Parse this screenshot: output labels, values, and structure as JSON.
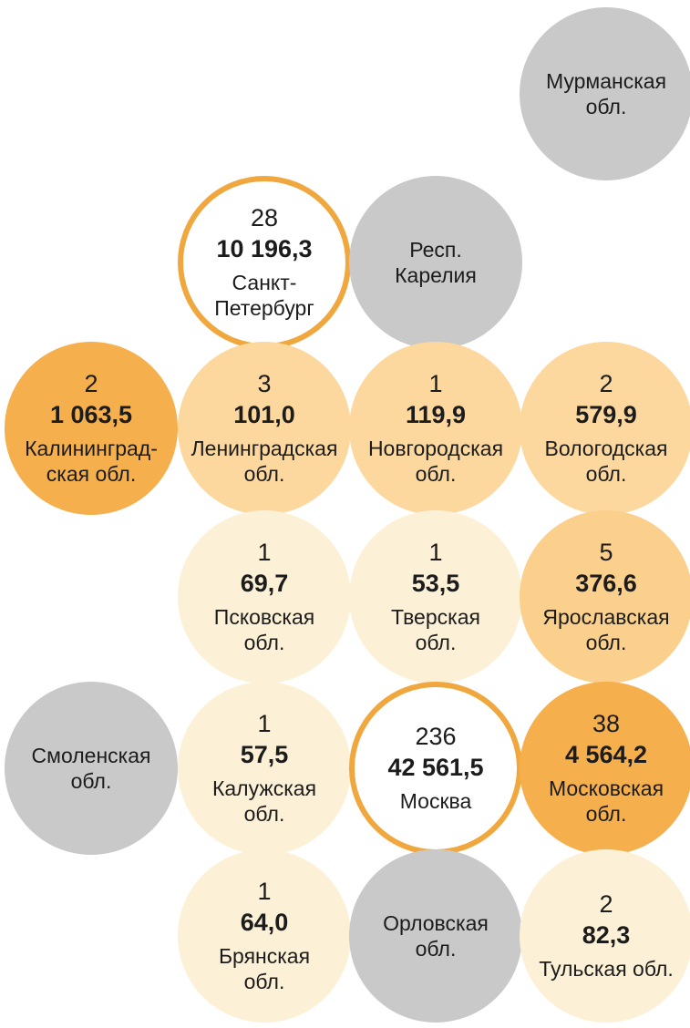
{
  "colors": {
    "gray": "#c9c9c9",
    "cream": "#fcf1d6",
    "light_orange": "#fcd89e",
    "mid_orange": "#fbd08d",
    "dark_orange": "#f5af4d",
    "ring": "#efa73e",
    "white": "#ffffff",
    "text": "#1c1c1c"
  },
  "chart_data": {
    "type": "heatmap",
    "title": "",
    "legend_position": "none",
    "layout": "tile-grid cartogram of Russian regions, circle color encodes value",
    "regions": [
      {
        "name": "Мурманская\nобл.",
        "count": "",
        "value": "",
        "value_num": null,
        "fill": "gray"
      },
      {
        "name": "Санкт-\nПетербург",
        "count": "28",
        "value": "10 196,3",
        "count_num": 28,
        "value_num": 10196.3,
        "fill": "white-ring"
      },
      {
        "name": "Респ.\nКарелия",
        "count": "",
        "value": "",
        "value_num": null,
        "fill": "gray"
      },
      {
        "name": "Калининград-\nская обл.",
        "count": "2",
        "value": "1 063,5",
        "count_num": 2,
        "value_num": 1063.5,
        "fill": "dark_orange"
      },
      {
        "name": "Ленинградская\nобл.",
        "count": "3",
        "value": "101,0",
        "count_num": 3,
        "value_num": 101.0,
        "fill": "light_orange"
      },
      {
        "name": "Новгородская\nобл.",
        "count": "1",
        "value": "119,9",
        "count_num": 1,
        "value_num": 119.9,
        "fill": "light_orange"
      },
      {
        "name": "Вологодская\nобл.",
        "count": "2",
        "value": "579,9",
        "count_num": 2,
        "value_num": 579.9,
        "fill": "light_orange"
      },
      {
        "name": "Псковская\nобл.",
        "count": "1",
        "value": "69,7",
        "count_num": 1,
        "value_num": 69.7,
        "fill": "cream"
      },
      {
        "name": "Тверская\nобл.",
        "count": "1",
        "value": "53,5",
        "count_num": 1,
        "value_num": 53.5,
        "fill": "cream"
      },
      {
        "name": "Ярославская\nобл.",
        "count": "5",
        "value": "376,6",
        "count_num": 5,
        "value_num": 376.6,
        "fill": "mid_orange"
      },
      {
        "name": "Смоленская\nобл.",
        "count": "",
        "value": "",
        "value_num": null,
        "fill": "gray"
      },
      {
        "name": "Калужская\nобл.",
        "count": "1",
        "value": "57,5",
        "count_num": 1,
        "value_num": 57.5,
        "fill": "cream"
      },
      {
        "name": "Москва",
        "count": "236",
        "value": "42 561,5",
        "count_num": 236,
        "value_num": 42561.5,
        "fill": "white-ring"
      },
      {
        "name": "Московская\nобл.",
        "count": "38",
        "value": "4 564,2",
        "count_num": 38,
        "value_num": 4564.2,
        "fill": "dark_orange"
      },
      {
        "name": "Брянская\nобл.",
        "count": "1",
        "value": "64,0",
        "count_num": 1,
        "value_num": 64.0,
        "fill": "cream"
      },
      {
        "name": "Орловская\nобл.",
        "count": "",
        "value": "",
        "value_num": null,
        "fill": "gray"
      },
      {
        "name": "Тульская обл.",
        "count": "2",
        "value": "82,3",
        "count_num": 2,
        "value_num": 82.3,
        "fill": "cream"
      }
    ]
  }
}
